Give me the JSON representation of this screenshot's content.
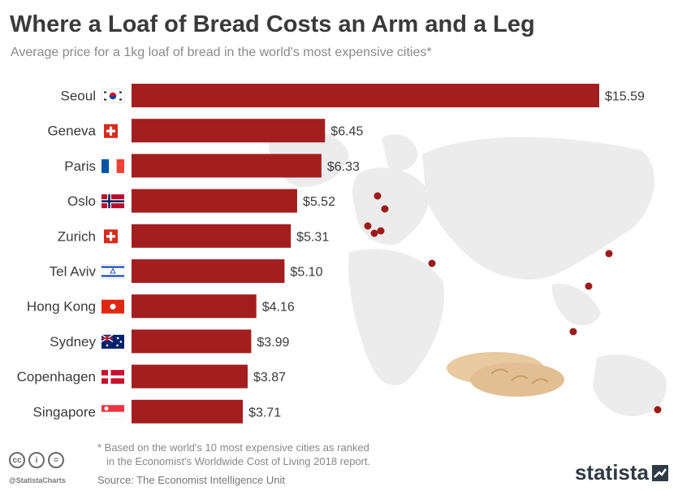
{
  "title": "Where a Loaf of Bread Costs an Arm and a Leg",
  "subtitle": "Average price for a 1kg loaf of bread in the world's most expensive cities*",
  "footnote": {
    "line1": "* Based on the world's 10 most expensive cities as ranked",
    "line2": "in the Economist's Worldwide Cost of Living 2018 report."
  },
  "source": "Source: The Economist Intelligence Unit",
  "handle": "@StatistaCharts",
  "brand": "statista",
  "colors": {
    "bar": "#a31e1e",
    "map": "#ececec",
    "dot": "#9b1c1c",
    "text": "#3a3a3a"
  },
  "chart_data": {
    "type": "bar",
    "orientation": "horizontal",
    "categories": [
      "Seoul",
      "Geneva",
      "Paris",
      "Oslo",
      "Zurich",
      "Tel Aviv",
      "Hong Kong",
      "Sydney",
      "Copenhagen",
      "Singapore"
    ],
    "values": [
      15.59,
      6.45,
      6.33,
      5.52,
      5.31,
      5.1,
      4.16,
      3.99,
      3.87,
      3.71
    ],
    "labels": [
      "$15.59",
      "$6.45",
      "$6.33",
      "$5.52",
      "$5.31",
      "$5.10",
      "$4.16",
      "$3.99",
      "$3.87",
      "$3.71"
    ],
    "flags": [
      "south-korea-flag",
      "switzerland-flag",
      "france-flag",
      "norway-flag",
      "switzerland-flag",
      "israel-flag",
      "hong-kong-flag",
      "australia-flag",
      "denmark-flag",
      "singapore-flag"
    ],
    "xlim": [
      0,
      15.59
    ],
    "grid": false,
    "legend": "none"
  }
}
